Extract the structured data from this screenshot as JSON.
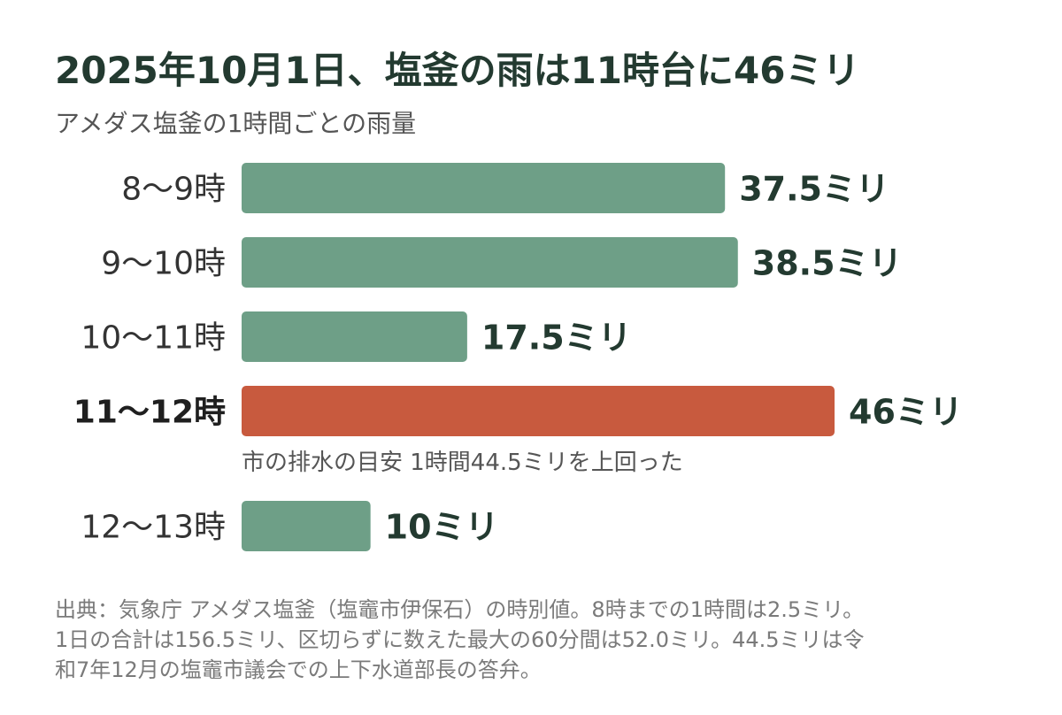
{
  "title": "2025年10月1日、塩釜の雨は11時台に46ミリ",
  "subtitle": "アメダス塩釜の1時間ごとの雨量",
  "colors": {
    "bar": "#6e9f87",
    "highlight": "#c85a3e",
    "text": "#233a30"
  },
  "chart_data": {
    "type": "bar",
    "orientation": "horizontal",
    "categories": [
      "8〜9時",
      "9〜10時",
      "10〜11時",
      "11〜12時",
      "12〜13時"
    ],
    "values": [
      37.5,
      38.5,
      17.5,
      46,
      10
    ],
    "value_labels": [
      "37.5ミリ",
      "38.5ミリ",
      "17.5ミリ",
      "46ミリ",
      "10ミリ"
    ],
    "highlight_index": 3,
    "annotation": "市の排水の目安 1時間44.5ミリを上回った",
    "xlim": [
      0,
      46
    ],
    "grid": false
  },
  "footnote": {
    "lines": [
      "出典：気象庁 アメダス塩釜（塩竈市伊保石）の時別値。8時までの1時間は2.5ミリ。",
      "1日の合計は156.5ミリ、区切らずに数えた最大の60分間は52.0ミリ。44.5ミリは令",
      "和7年12月の塩竈市議会での上下水道部長の答弁。"
    ]
  }
}
